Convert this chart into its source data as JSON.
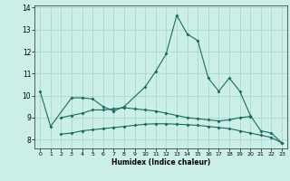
{
  "xlabel": "Humidex (Indice chaleur)",
  "background_color": "#cceee8",
  "grid_color": "#aad8d0",
  "line_color": "#1a6b5a",
  "x": [
    0,
    1,
    2,
    3,
    4,
    5,
    6,
    7,
    8,
    9,
    10,
    11,
    12,
    13,
    14,
    15,
    16,
    17,
    18,
    19,
    20,
    21,
    22,
    23
  ],
  "line1": [
    10.2,
    8.6,
    null,
    9.9,
    9.9,
    9.85,
    9.5,
    9.3,
    9.5,
    null,
    10.4,
    11.1,
    11.9,
    13.65,
    12.8,
    12.5,
    10.8,
    10.2,
    10.8,
    10.2,
    9.1,
    8.4,
    8.3,
    7.85
  ],
  "line2_x": [
    2,
    3,
    4,
    5,
    6,
    7,
    8,
    9,
    10,
    11,
    12,
    13,
    14,
    15,
    16,
    17,
    18,
    19,
    20
  ],
  "line2_y": [
    9.0,
    9.1,
    9.2,
    9.35,
    9.35,
    9.4,
    9.45,
    9.4,
    9.35,
    9.3,
    9.2,
    9.1,
    9.0,
    8.95,
    8.9,
    8.85,
    8.9,
    9.0,
    9.05
  ],
  "line3_x": [
    2,
    3,
    4,
    5,
    6,
    7,
    8,
    9,
    10,
    11,
    12,
    13,
    14,
    15,
    16,
    17,
    18,
    19,
    20,
    21,
    22,
    23
  ],
  "line3_y": [
    8.25,
    8.3,
    8.4,
    8.45,
    8.5,
    8.55,
    8.6,
    8.65,
    8.7,
    8.72,
    8.72,
    8.7,
    8.68,
    8.65,
    8.6,
    8.55,
    8.5,
    8.4,
    8.3,
    8.2,
    8.1,
    7.85
  ],
  "ylim": [
    7.6,
    14.1
  ],
  "xlim": [
    -0.5,
    23.5
  ],
  "yticks": [
    8,
    9,
    10,
    11,
    12,
    13,
    14
  ],
  "xticks": [
    0,
    1,
    2,
    3,
    4,
    5,
    6,
    7,
    8,
    9,
    10,
    11,
    12,
    13,
    14,
    15,
    16,
    17,
    18,
    19,
    20,
    21,
    22,
    23
  ]
}
